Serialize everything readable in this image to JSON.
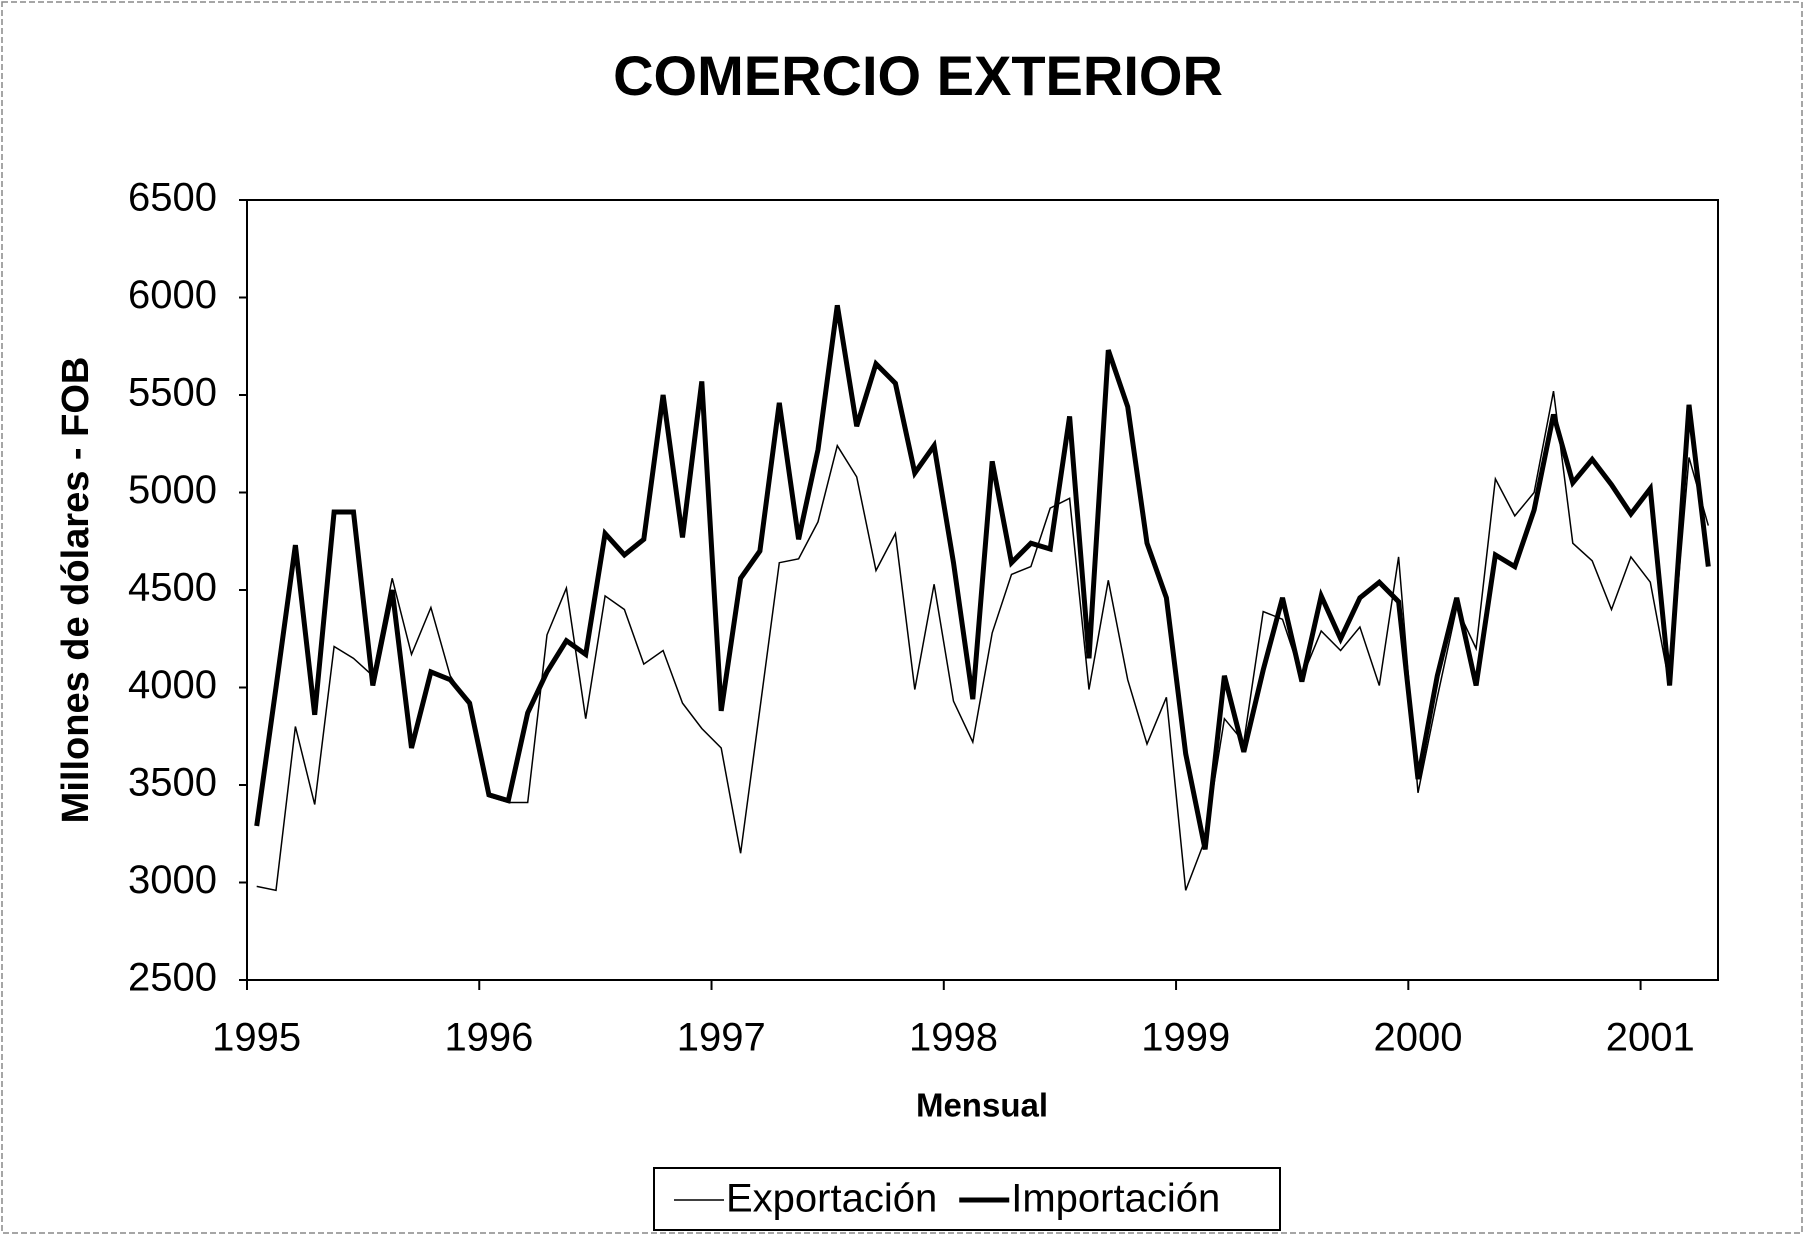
{
  "chart_data": {
    "type": "line",
    "title": "COMERCIO EXTERIOR",
    "x_label": "Mensual",
    "y_label": "Millones de dólares - FOB",
    "categories": [
      "1995",
      null,
      null,
      null,
      null,
      null,
      null,
      null,
      null,
      null,
      null,
      null,
      "1996",
      null,
      null,
      null,
      null,
      null,
      null,
      null,
      null,
      null,
      null,
      null,
      "1997",
      null,
      null,
      null,
      null,
      null,
      null,
      null,
      null,
      null,
      null,
      null,
      "1998",
      null,
      null,
      null,
      null,
      null,
      null,
      null,
      null,
      null,
      null,
      null,
      "1999",
      null,
      null,
      null,
      null,
      null,
      null,
      null,
      null,
      null,
      null,
      null,
      "2000",
      null,
      null,
      null,
      null,
      null,
      null,
      null,
      null,
      null,
      null,
      null,
      "2001",
      null,
      null,
      null
    ],
    "series": [
      {
        "name": "Exportación",
        "color": "#000000",
        "width": 1.5,
        "values": [
          2980,
          2960,
          3800,
          3400,
          4210,
          4150,
          4060,
          4560,
          4170,
          4410,
          4060,
          3910,
          3440,
          3410,
          3410,
          4270,
          4510,
          3840,
          4470,
          4400,
          4120,
          4190,
          3920,
          3790,
          3690,
          3150,
          3890,
          4640,
          4660,
          4850,
          5240,
          5080,
          4600,
          4790,
          3990,
          4530,
          3930,
          3720,
          4280,
          4580,
          4620,
          4920,
          4970,
          3990,
          4550,
          4040,
          3710,
          3950,
          2960,
          3220,
          3840,
          3720,
          4390,
          4350,
          4050,
          4290,
          4190,
          4310,
          4010,
          4670,
          3460,
          3950,
          4410,
          4200,
          5070,
          4880,
          5000,
          5520,
          4740,
          4650,
          4400,
          4670,
          4540,
          4010,
          5180,
          4830
        ]
      },
      {
        "name": "Importación",
        "color": "#000000",
        "width": 5,
        "values": [
          3290,
          4000,
          4730,
          3860,
          4900,
          4900,
          4010,
          4500,
          3690,
          4080,
          4040,
          3920,
          3450,
          3420,
          3870,
          4080,
          4240,
          4170,
          4790,
          4680,
          4760,
          5500,
          4770,
          5570,
          3880,
          4560,
          4700,
          5460,
          4760,
          5220,
          5960,
          5340,
          5660,
          5560,
          5100,
          5240,
          4640,
          3940,
          5160,
          4640,
          4740,
          4710,
          5390,
          4150,
          5730,
          5440,
          4740,
          4460,
          3660,
          3170,
          4060,
          3670,
          4090,
          4460,
          4030,
          4470,
          4250,
          4460,
          4540,
          4440,
          3530,
          4060,
          4460,
          4010,
          4680,
          4620,
          4910,
          5400,
          5050,
          5170,
          5040,
          4890,
          5020,
          4010,
          5450,
          4620
        ]
      }
    ],
    "ylim": [
      2500,
      6500
    ],
    "yticks": [
      2500,
      3000,
      3500,
      4000,
      4500,
      5000,
      5500,
      6000,
      6500
    ],
    "grid": false,
    "legend": "bottom"
  }
}
